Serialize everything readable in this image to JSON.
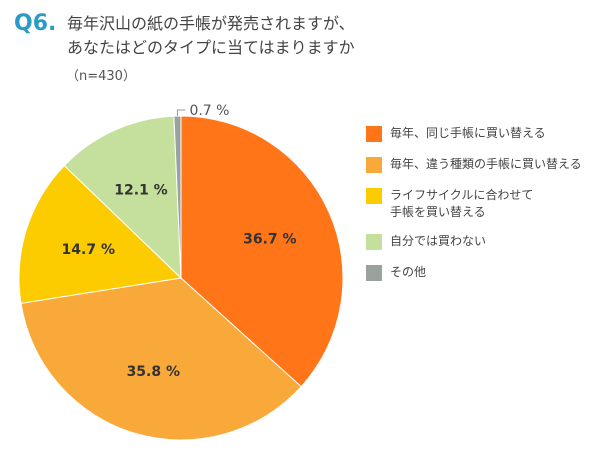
{
  "header": {
    "q_number": "Q6.",
    "question_line1": "毎年沢山の紙の手帳が発売されますが、",
    "question_line2": "あなたはどのタイプに当てはまりますか",
    "sample_size": "（n=430）"
  },
  "chart_data": {
    "type": "pie",
    "title": "",
    "slices": [
      {
        "label": "毎年、同じ手帳に買い替える",
        "value": 36.7,
        "display": "36.7 %",
        "color": "#ff7518"
      },
      {
        "label": "毎年、違う種類の手帳に買い替える",
        "value": 35.8,
        "display": "35.8 %",
        "color": "#f9a93a"
      },
      {
        "label": "ライフサイクルに合わせて\n手帳を買い替える",
        "value": 14.7,
        "display": "14.7 %",
        "color": "#fccb00"
      },
      {
        "label": "自分では買わない",
        "value": 12.1,
        "display": "12.1 %",
        "color": "#c4e09c"
      },
      {
        "label": "その他",
        "value": 0.7,
        "display": "0.7 %",
        "color": "#9aa29c"
      }
    ],
    "start_angle_deg": 0,
    "direction": "clockwise",
    "legend_position": "right"
  }
}
